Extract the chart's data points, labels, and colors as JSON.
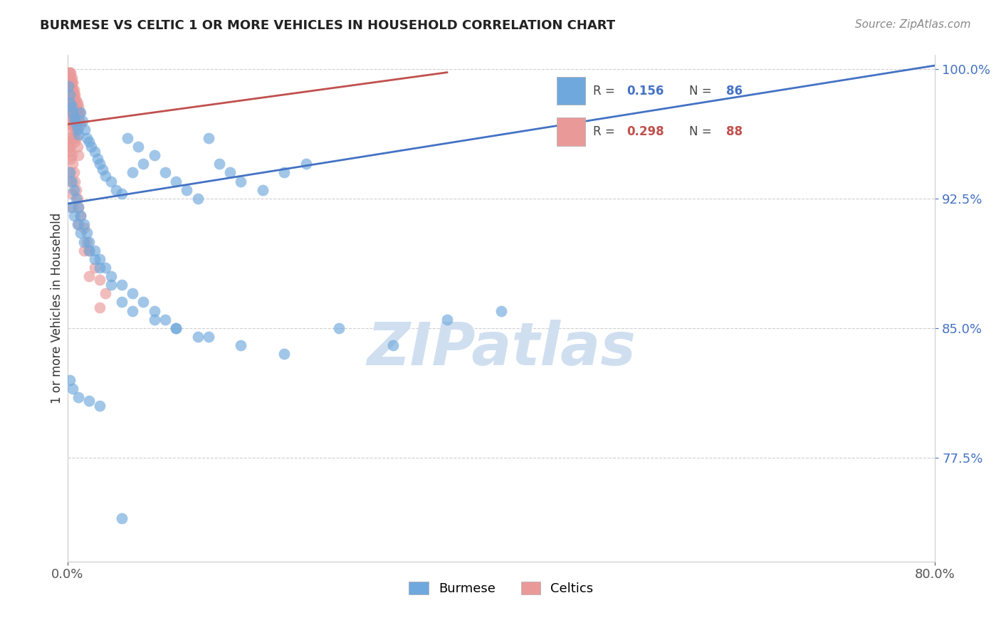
{
  "title": "BURMESE VS CELTIC 1 OR MORE VEHICLES IN HOUSEHOLD CORRELATION CHART",
  "source_text": "Source: ZipAtlas.com",
  "ylabel": "1 or more Vehicles in Household",
  "legend_burmese": "Burmese",
  "legend_celtics": "Celtics",
  "R_burmese": 0.156,
  "N_burmese": 86,
  "R_celtics": 0.298,
  "N_celtics": 88,
  "xlim": [
    0.0,
    0.8
  ],
  "ylim": [
    0.715,
    1.008
  ],
  "yticks": [
    0.775,
    0.85,
    0.925,
    1.0
  ],
  "ytick_labels": [
    "77.5%",
    "85.0%",
    "92.5%",
    "100.0%"
  ],
  "xtick_labels": [
    "0.0%",
    "80.0%"
  ],
  "xticks": [
    0.0,
    0.8
  ],
  "blue_color": "#6fa8dc",
  "pink_color": "#ea9999",
  "blue_line_color": "#4472c4",
  "pink_line_color": "#c0504d",
  "watermark_color": "#d0dff0",
  "burmese_x": [
    0.001,
    0.002,
    0.003,
    0.004,
    0.005,
    0.006,
    0.007,
    0.008,
    0.009,
    0.01,
    0.012,
    0.014,
    0.016,
    0.018,
    0.02,
    0.022,
    0.025,
    0.028,
    0.03,
    0.032,
    0.035,
    0.04,
    0.045,
    0.05,
    0.055,
    0.06,
    0.065,
    0.07,
    0.08,
    0.09,
    0.1,
    0.11,
    0.12,
    0.13,
    0.14,
    0.15,
    0.16,
    0.18,
    0.2,
    0.22,
    0.002,
    0.004,
    0.006,
    0.008,
    0.01,
    0.012,
    0.015,
    0.018,
    0.02,
    0.025,
    0.03,
    0.035,
    0.04,
    0.05,
    0.06,
    0.07,
    0.08,
    0.09,
    0.1,
    0.12,
    0.003,
    0.006,
    0.009,
    0.012,
    0.015,
    0.02,
    0.025,
    0.03,
    0.04,
    0.05,
    0.06,
    0.08,
    0.1,
    0.13,
    0.16,
    0.2,
    0.25,
    0.3,
    0.35,
    0.4,
    0.002,
    0.005,
    0.01,
    0.02,
    0.03,
    0.05
  ],
  "burmese_y": [
    0.99,
    0.985,
    0.98,
    0.978,
    0.975,
    0.972,
    0.97,
    0.968,
    0.965,
    0.962,
    0.975,
    0.97,
    0.965,
    0.96,
    0.958,
    0.955,
    0.952,
    0.948,
    0.945,
    0.942,
    0.938,
    0.935,
    0.93,
    0.928,
    0.96,
    0.94,
    0.955,
    0.945,
    0.95,
    0.94,
    0.935,
    0.93,
    0.925,
    0.96,
    0.945,
    0.94,
    0.935,
    0.93,
    0.94,
    0.945,
    0.94,
    0.935,
    0.93,
    0.925,
    0.92,
    0.915,
    0.91,
    0.905,
    0.9,
    0.895,
    0.89,
    0.885,
    0.88,
    0.875,
    0.87,
    0.865,
    0.86,
    0.855,
    0.85,
    0.845,
    0.92,
    0.915,
    0.91,
    0.905,
    0.9,
    0.895,
    0.89,
    0.885,
    0.875,
    0.865,
    0.86,
    0.855,
    0.85,
    0.845,
    0.84,
    0.835,
    0.85,
    0.84,
    0.855,
    0.86,
    0.82,
    0.815,
    0.81,
    0.808,
    0.805,
    0.74
  ],
  "celtics_x": [
    0.001,
    0.001,
    0.001,
    0.002,
    0.002,
    0.002,
    0.002,
    0.003,
    0.003,
    0.003,
    0.003,
    0.003,
    0.003,
    0.004,
    0.004,
    0.004,
    0.004,
    0.005,
    0.005,
    0.005,
    0.005,
    0.005,
    0.006,
    0.006,
    0.006,
    0.006,
    0.007,
    0.007,
    0.007,
    0.008,
    0.008,
    0.008,
    0.009,
    0.009,
    0.01,
    0.01,
    0.01,
    0.011,
    0.011,
    0.012,
    0.001,
    0.002,
    0.002,
    0.002,
    0.003,
    0.003,
    0.003,
    0.004,
    0.004,
    0.004,
    0.005,
    0.005,
    0.005,
    0.006,
    0.006,
    0.007,
    0.007,
    0.008,
    0.009,
    0.01,
    0.001,
    0.001,
    0.002,
    0.002,
    0.003,
    0.003,
    0.004,
    0.005,
    0.006,
    0.007,
    0.008,
    0.009,
    0.01,
    0.012,
    0.015,
    0.018,
    0.02,
    0.025,
    0.03,
    0.035,
    0.002,
    0.003,
    0.004,
    0.005,
    0.01,
    0.015,
    0.02,
    0.03
  ],
  "celtics_y": [
    0.998,
    0.995,
    0.992,
    0.998,
    0.995,
    0.992,
    0.988,
    0.998,
    0.995,
    0.992,
    0.988,
    0.985,
    0.982,
    0.995,
    0.992,
    0.988,
    0.985,
    0.992,
    0.988,
    0.985,
    0.982,
    0.978,
    0.988,
    0.985,
    0.982,
    0.978,
    0.985,
    0.982,
    0.978,
    0.982,
    0.978,
    0.975,
    0.98,
    0.975,
    0.978,
    0.975,
    0.97,
    0.975,
    0.97,
    0.968,
    0.975,
    0.985,
    0.978,
    0.97,
    0.982,
    0.975,
    0.968,
    0.978,
    0.972,
    0.965,
    0.975,
    0.968,
    0.96,
    0.97,
    0.962,
    0.965,
    0.958,
    0.96,
    0.955,
    0.95,
    0.96,
    0.955,
    0.958,
    0.952,
    0.955,
    0.948,
    0.95,
    0.945,
    0.94,
    0.935,
    0.93,
    0.925,
    0.92,
    0.915,
    0.908,
    0.9,
    0.895,
    0.885,
    0.878,
    0.87,
    0.94,
    0.935,
    0.928,
    0.92,
    0.91,
    0.895,
    0.88,
    0.862
  ]
}
